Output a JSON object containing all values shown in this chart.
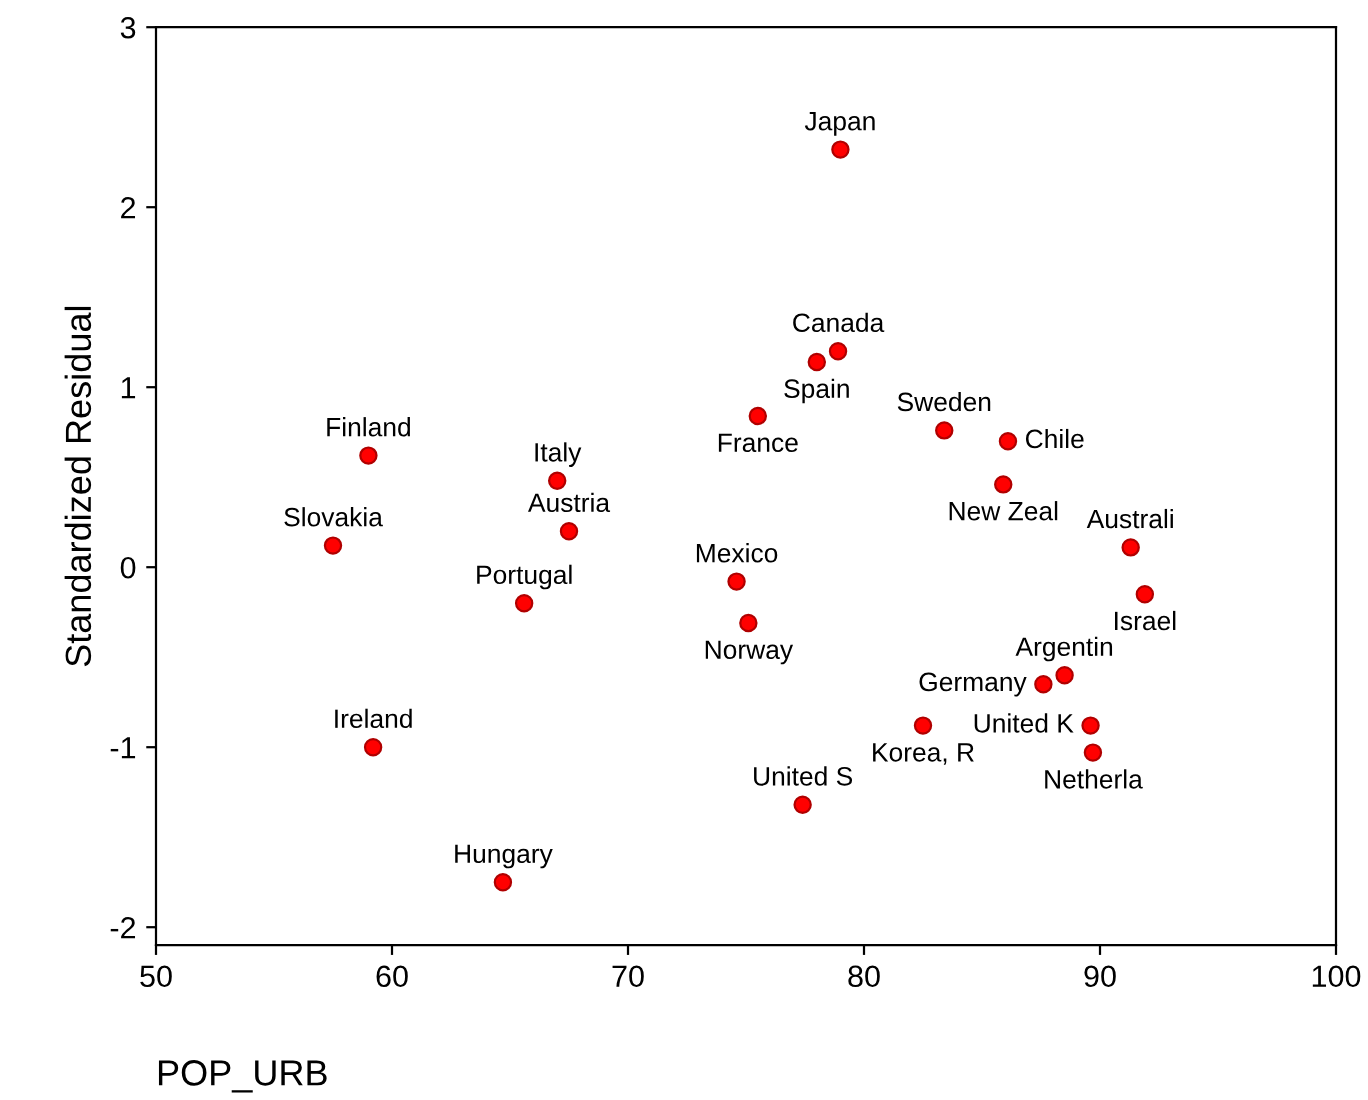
{
  "chart_data": {
    "type": "scatter",
    "xlabel": "POP_URB",
    "ylabel": "Standardized Residual",
    "x": [
      79.0,
      78.9,
      78.0,
      75.5,
      59.0,
      67.0,
      83.4,
      86.1,
      85.9,
      57.5,
      67.5,
      91.3,
      91.9,
      65.6,
      74.6,
      75.1,
      88.5,
      87.6,
      89.6,
      89.7,
      82.5,
      59.2,
      77.4,
      64.7
    ],
    "series": [
      {
        "color": "#ff0000",
        "values": [
          2.32,
          1.2,
          1.14,
          0.84,
          0.62,
          0.48,
          0.76,
          0.7,
          0.46,
          0.12,
          0.2,
          0.11,
          -0.15,
          -0.2,
          -0.08,
          -0.31,
          -0.6,
          -0.65,
          -0.88,
          -1.03,
          -0.88,
          -1.0,
          -1.32,
          -1.75
        ]
      }
    ],
    "annotations": [
      {
        "text": "Japan",
        "x": 79.0,
        "y": 2.32
      },
      {
        "text": "Canada",
        "x": 78.9,
        "y": 1.2
      },
      {
        "text": "Spain",
        "x": 78.0,
        "y": 1.14
      },
      {
        "text": "France",
        "x": 75.5,
        "y": 0.84
      },
      {
        "text": "Finland",
        "x": 59.0,
        "y": 0.62
      },
      {
        "text": "Italy",
        "x": 67.0,
        "y": 0.48
      },
      {
        "text": "Sweden",
        "x": 83.4,
        "y": 0.76
      },
      {
        "text": "Chile",
        "x": 86.1,
        "y": 0.7
      },
      {
        "text": "New Zeal",
        "x": 85.9,
        "y": 0.46
      },
      {
        "text": "Slovakia",
        "x": 57.5,
        "y": 0.12
      },
      {
        "text": "Austria",
        "x": 67.5,
        "y": 0.2
      },
      {
        "text": "Australi",
        "x": 91.3,
        "y": 0.11
      },
      {
        "text": "Israel",
        "x": 91.9,
        "y": -0.15
      },
      {
        "text": "Portugal",
        "x": 65.6,
        "y": -0.2
      },
      {
        "text": "Mexico",
        "x": 74.6,
        "y": -0.08
      },
      {
        "text": "Norway",
        "x": 75.1,
        "y": -0.31
      },
      {
        "text": "Argentin",
        "x": 88.5,
        "y": -0.6
      },
      {
        "text": "Germany",
        "x": 87.6,
        "y": -0.65
      },
      {
        "text": "United K",
        "x": 89.6,
        "y": -0.88
      },
      {
        "text": "Netherla",
        "x": 89.7,
        "y": -1.03
      },
      {
        "text": "Korea, R",
        "x": 82.5,
        "y": -0.88
      },
      {
        "text": "Ireland",
        "x": 59.2,
        "y": -1.0
      },
      {
        "text": "United S",
        "x": 77.4,
        "y": -1.32
      },
      {
        "text": "Hungary",
        "x": 64.7,
        "y": -1.75
      }
    ],
    "xlim": [
      50,
      100
    ],
    "xticks": [
      50,
      60,
      70,
      80,
      90,
      100
    ],
    "ylim": [
      -2.1,
      3
    ],
    "yticks": [
      -2,
      -1,
      0,
      1,
      2,
      3
    ],
    "marker": "circle",
    "grid": false,
    "legend": false
  }
}
